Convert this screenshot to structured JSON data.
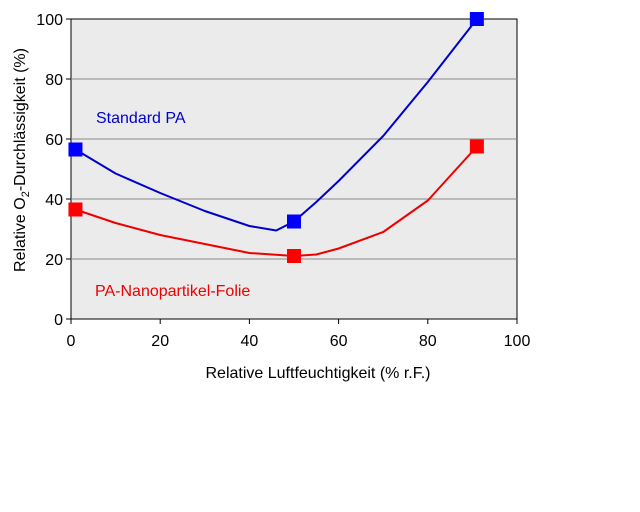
{
  "chart_data": {
    "type": "line",
    "xlabel": "Relative Luftfeuchtigkeit (% r.F.)",
    "ylabel_main": "Relative O",
    "ylabel_sub": "2",
    "ylabel_rest": "-Durchlässigkeit (%)",
    "xlim": [
      0,
      100
    ],
    "ylim": [
      0,
      100
    ],
    "x_ticks": [
      0,
      20,
      40,
      60,
      80,
      100
    ],
    "y_ticks": [
      0,
      20,
      40,
      60,
      80,
      100
    ],
    "grid": "horizontal",
    "plot_background": "#ebebeb",
    "series": [
      {
        "name": "Standard PA",
        "color": "#0000cc",
        "marker_color": "#0000ff",
        "x": [
          1,
          50,
          91
        ],
        "y": [
          56.5,
          32.5,
          100
        ],
        "curve_x": [
          1,
          10,
          20,
          30,
          40,
          46,
          50,
          55,
          60,
          70,
          80,
          91
        ],
        "curve_y": [
          56.5,
          48.5,
          42,
          36,
          31,
          29.5,
          32.5,
          39,
          46,
          61,
          79,
          100
        ]
      },
      {
        "name": "PA-Nanopartikel-Folie",
        "color": "#ee0000",
        "marker_color": "#ff0000",
        "x": [
          1,
          50,
          91
        ],
        "y": [
          36.5,
          21,
          57.5
        ],
        "curve_x": [
          1,
          10,
          20,
          30,
          40,
          50,
          55,
          60,
          70,
          80,
          91
        ],
        "curve_y": [
          36.5,
          32,
          28,
          25,
          22,
          21,
          21.5,
          23.5,
          29,
          39.5,
          57.5
        ]
      }
    ]
  }
}
